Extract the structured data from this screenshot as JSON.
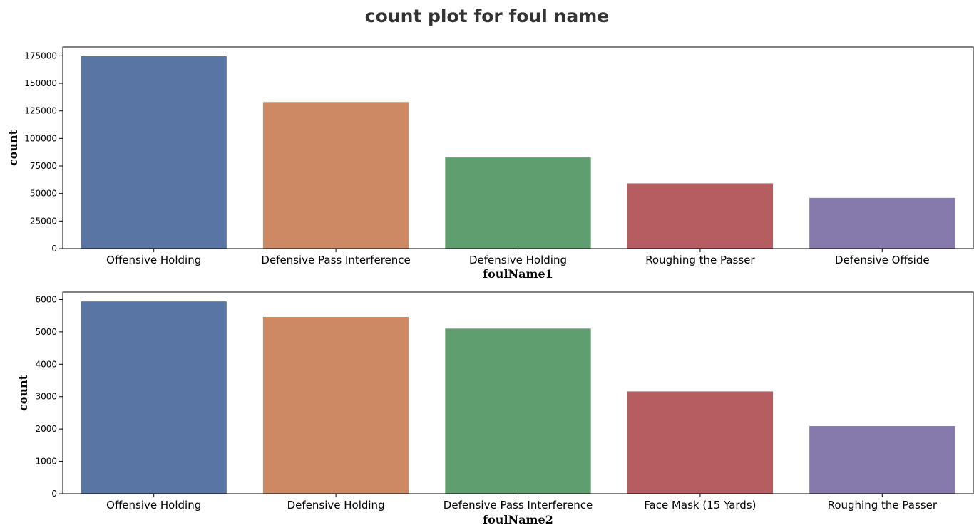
{
  "figure": {
    "title": "count plot for foul name"
  },
  "chart_data": [
    {
      "type": "bar",
      "xlabel": "foulName1",
      "ylabel": "count",
      "categories": [
        "Offensive Holding",
        "Defensive Pass Interference",
        "Defensive Holding",
        "Roughing the Passer",
        "Defensive Offside"
      ],
      "values": [
        174600,
        133000,
        82700,
        59200,
        46000
      ],
      "colors": [
        "#5875a4",
        "#cc8963",
        "#5f9e6e",
        "#b55d60",
        "#857aab"
      ],
      "ylim": [
        0,
        183000
      ],
      "yticks": [
        0,
        25000,
        50000,
        75000,
        100000,
        125000,
        150000,
        175000
      ],
      "grid": false
    },
    {
      "type": "bar",
      "xlabel": "foulName2",
      "ylabel": "count",
      "categories": [
        "Offensive Holding",
        "Defensive Holding",
        "Defensive Pass Interference",
        "Face Mask (15 Yards)",
        "Roughing the Passer"
      ],
      "values": [
        5940,
        5460,
        5100,
        3160,
        2090
      ],
      "colors": [
        "#5875a4",
        "#cc8963",
        "#5f9e6e",
        "#b55d60",
        "#857aab"
      ],
      "ylim": [
        0,
        6230
      ],
      "yticks": [
        0,
        1000,
        2000,
        3000,
        4000,
        5000,
        6000
      ],
      "grid": false
    }
  ]
}
